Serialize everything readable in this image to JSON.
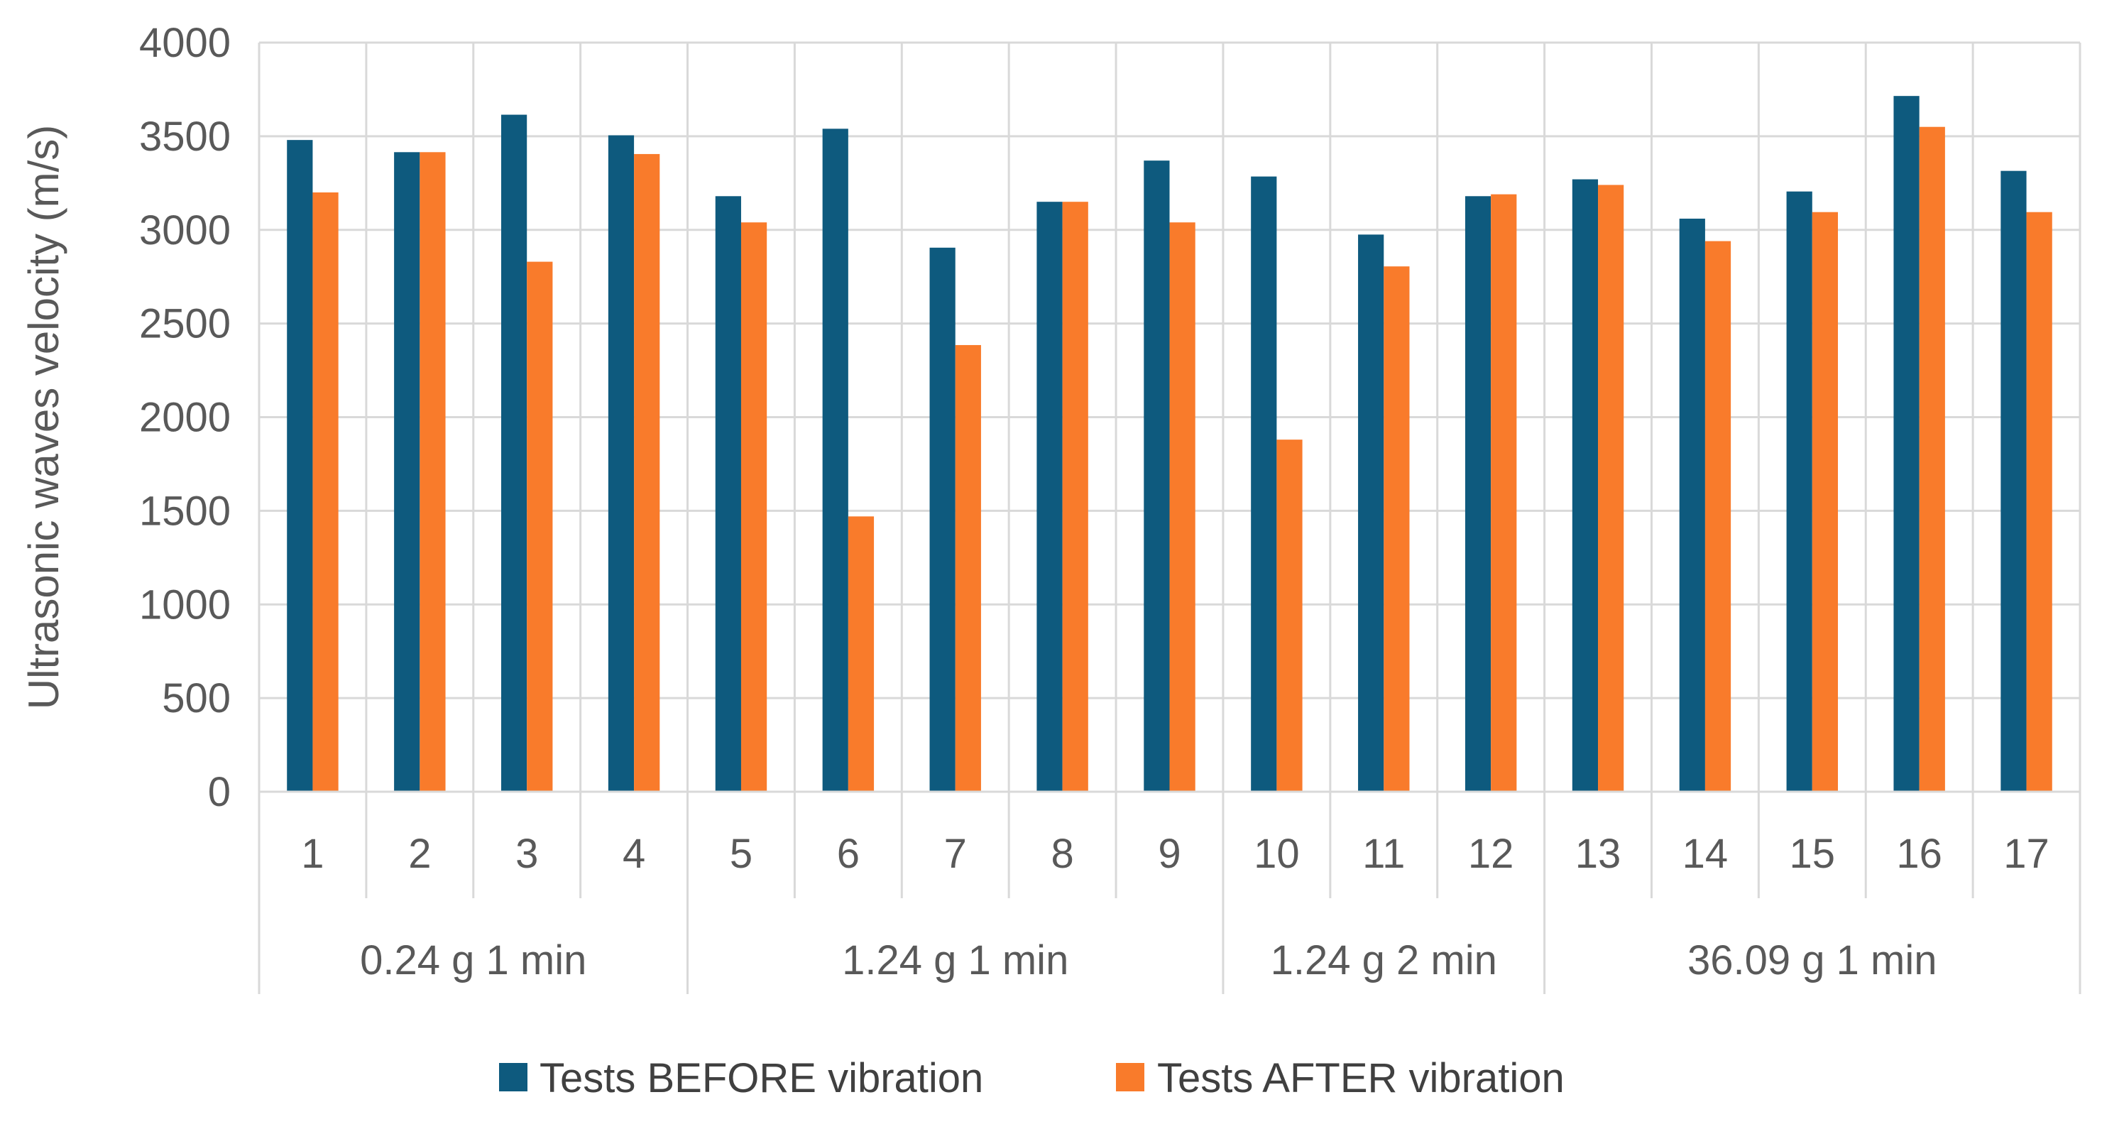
{
  "chart_data": {
    "type": "bar",
    "title": "",
    "ylabel": "Ultrasonic waves velocity (m/s)",
    "xlabel": "",
    "ylim": [
      0,
      4000
    ],
    "yticks": [
      0,
      500,
      1000,
      1500,
      2000,
      2500,
      3000,
      3500,
      4000
    ],
    "grid": true,
    "legend_position": "bottom",
    "categories": [
      "1",
      "2",
      "3",
      "4",
      "5",
      "6",
      "7",
      "8",
      "9",
      "10",
      "11",
      "12",
      "13",
      "14",
      "15",
      "16",
      "17"
    ],
    "groups": [
      {
        "label": "0.24 g 1 min",
        "start": 0,
        "count": 4
      },
      {
        "label": "1.24 g 1 min",
        "start": 4,
        "count": 5
      },
      {
        "label": "1.24 g 2 min",
        "start": 9,
        "count": 3
      },
      {
        "label": "36.09 g 1 min",
        "start": 12,
        "count": 5
      }
    ],
    "series": [
      {
        "name": "Tests BEFORE vibration",
        "color": "#0E5A7E",
        "values": [
          3480,
          3415,
          3615,
          3505,
          3180,
          3540,
          2905,
          3150,
          3370,
          3285,
          2975,
          3180,
          3270,
          3060,
          3205,
          3715,
          3315
        ]
      },
      {
        "name": "Tests AFTER vibration",
        "color": "#F97B2B",
        "values": [
          3200,
          3415,
          2830,
          3405,
          3040,
          1470,
          2385,
          3150,
          3040,
          1880,
          2805,
          3190,
          3240,
          2940,
          3095,
          3550,
          3095
        ]
      }
    ]
  }
}
